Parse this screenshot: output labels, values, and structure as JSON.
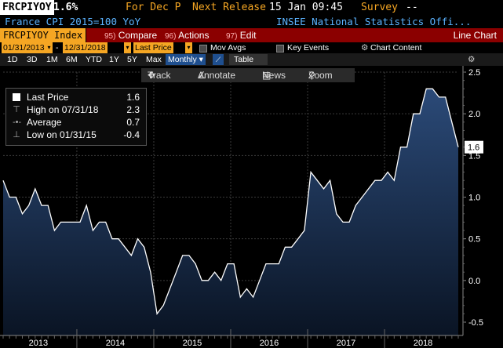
{
  "header": {
    "ticker": "FRCPIYOY",
    "value": "1.6%",
    "for_label": "For Dec P",
    "next_release_label": "Next Release",
    "next_release_value": "15 Jan 09:45",
    "survey_label": "Survey",
    "survey_value": "--",
    "description": "France CPI 2015=100 YoY",
    "source": "INSEE National Statistics Offi..."
  },
  "menu": {
    "security": "FRCPIYOY Index",
    "compare_num": "95)",
    "compare": "Compare",
    "actions_num": "96)",
    "actions": "Actions",
    "edit_num": "97)",
    "edit": "Edit",
    "chart_type": "Line Chart"
  },
  "controls": {
    "start_date": "01/31/2013",
    "end_date": "12/31/2018",
    "field": "Last Price",
    "mov_avgs": "Mov Avgs",
    "key_events": "Key Events",
    "chart_content": "Chart Content"
  },
  "periods": [
    "1D",
    "3D",
    "1M",
    "6M",
    "YTD",
    "1Y",
    "5Y",
    "Max"
  ],
  "frequency": "Monthly",
  "table_label": "Table",
  "toolbar": {
    "track": "Track",
    "annotate": "Annotate",
    "news": "News",
    "zoom": "Zoom"
  },
  "legend": {
    "last_label": "Last Price",
    "last_value": "1.6",
    "high_label": "High on 07/31/18",
    "high_value": "2.3",
    "avg_label": "Average",
    "avg_value": "0.7",
    "low_label": "Low on 01/31/15",
    "low_value": "-0.4"
  },
  "colors": {
    "accent": "#f5a623",
    "menu_bar": "#8b0000",
    "title_blue": "#5bb3ff",
    "area_top": "#2b4a78",
    "area_bottom": "#0a1424",
    "line": "#ffffff"
  },
  "chart_data": {
    "type": "area",
    "series": [
      {
        "name": "Last Price",
        "x": [
          "2013-01",
          "2013-02",
          "2013-03",
          "2013-04",
          "2013-05",
          "2013-06",
          "2013-07",
          "2013-08",
          "2013-09",
          "2013-10",
          "2013-11",
          "2013-12",
          "2014-01",
          "2014-02",
          "2014-03",
          "2014-04",
          "2014-05",
          "2014-06",
          "2014-07",
          "2014-08",
          "2014-09",
          "2014-10",
          "2014-11",
          "2014-12",
          "2015-01",
          "2015-02",
          "2015-03",
          "2015-04",
          "2015-05",
          "2015-06",
          "2015-07",
          "2015-08",
          "2015-09",
          "2015-10",
          "2015-11",
          "2015-12",
          "2016-01",
          "2016-02",
          "2016-03",
          "2016-04",
          "2016-05",
          "2016-06",
          "2016-07",
          "2016-08",
          "2016-09",
          "2016-10",
          "2016-11",
          "2016-12",
          "2017-01",
          "2017-02",
          "2017-03",
          "2017-04",
          "2017-05",
          "2017-06",
          "2017-07",
          "2017-08",
          "2017-09",
          "2017-10",
          "2017-11",
          "2017-12",
          "2018-01",
          "2018-02",
          "2018-03",
          "2018-04",
          "2018-05",
          "2018-06",
          "2018-07",
          "2018-08",
          "2018-09",
          "2018-10",
          "2018-11",
          "2018-12"
        ],
        "values": [
          1.2,
          1.0,
          1.0,
          0.8,
          0.9,
          1.1,
          0.9,
          0.9,
          0.6,
          0.7,
          0.7,
          0.7,
          0.7,
          0.9,
          0.6,
          0.7,
          0.7,
          0.5,
          0.5,
          0.4,
          0.3,
          0.5,
          0.4,
          0.1,
          -0.4,
          -0.3,
          -0.1,
          0.1,
          0.3,
          0.3,
          0.2,
          0.0,
          0.0,
          0.1,
          0.0,
          0.2,
          0.2,
          -0.2,
          -0.1,
          -0.2,
          0.0,
          0.2,
          0.2,
          0.2,
          0.4,
          0.4,
          0.5,
          0.6,
          1.3,
          1.2,
          1.1,
          1.2,
          0.8,
          0.7,
          0.7,
          0.9,
          1.0,
          1.1,
          1.2,
          1.2,
          1.3,
          1.2,
          1.6,
          1.6,
          2.0,
          2.0,
          2.3,
          2.3,
          2.2,
          2.2,
          1.9,
          1.6
        ]
      }
    ],
    "x_tick_labels": [
      "2013",
      "2014",
      "2015",
      "2016",
      "2017",
      "2018"
    ],
    "y_tick_labels": [
      "2.5",
      "2.0",
      "1.5",
      "1.0",
      "0.5",
      "0.0",
      "-0.5"
    ],
    "ylim": [
      -0.5,
      2.5
    ],
    "last_value_label": "1.6",
    "grid": true,
    "legend_position": "top-left"
  }
}
